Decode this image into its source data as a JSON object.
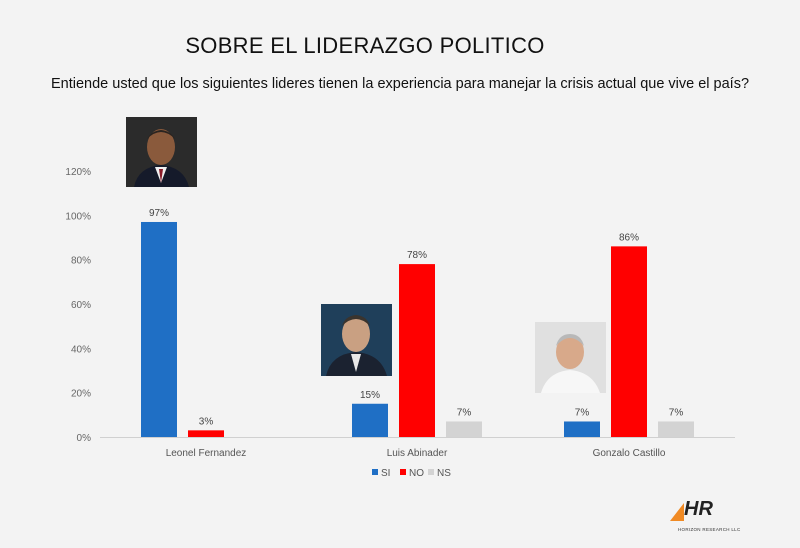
{
  "header": {
    "title": "SOBRE EL LIDERAZGO POLITICO",
    "subtitle": "Entiende usted que  los siguientes lideres  tienen  la experiencia para manejar  la crisis actual que vive el país?"
  },
  "logo": {
    "mark": "HR",
    "text": "HORIZON RESEARCH LLC"
  },
  "chart_data": {
    "type": "bar",
    "title": "",
    "xlabel": "",
    "ylabel": "",
    "ylim": [
      0,
      120
    ],
    "yticks": [
      "0%",
      "20%",
      "40%",
      "60%",
      "80%",
      "100%",
      "120%"
    ],
    "categories": [
      "Leonel Fernandez",
      "Luis Abinader",
      "Gonzalo Castillo"
    ],
    "series": [
      {
        "name": "SI",
        "color": "#1f6fc5",
        "values": [
          97,
          15,
          7
        ],
        "labels": [
          "97%",
          "15%",
          "7%"
        ]
      },
      {
        "name": "NO",
        "color": "#ff0000",
        "values": [
          3,
          78,
          86
        ],
        "labels": [
          "3%",
          "78%",
          "86%"
        ]
      },
      {
        "name": "NS",
        "color": "#d3d3d3",
        "values": [
          null,
          7,
          7
        ],
        "labels": [
          "",
          "7%",
          "7%"
        ]
      }
    ],
    "grid": false,
    "legend": "bottom"
  }
}
